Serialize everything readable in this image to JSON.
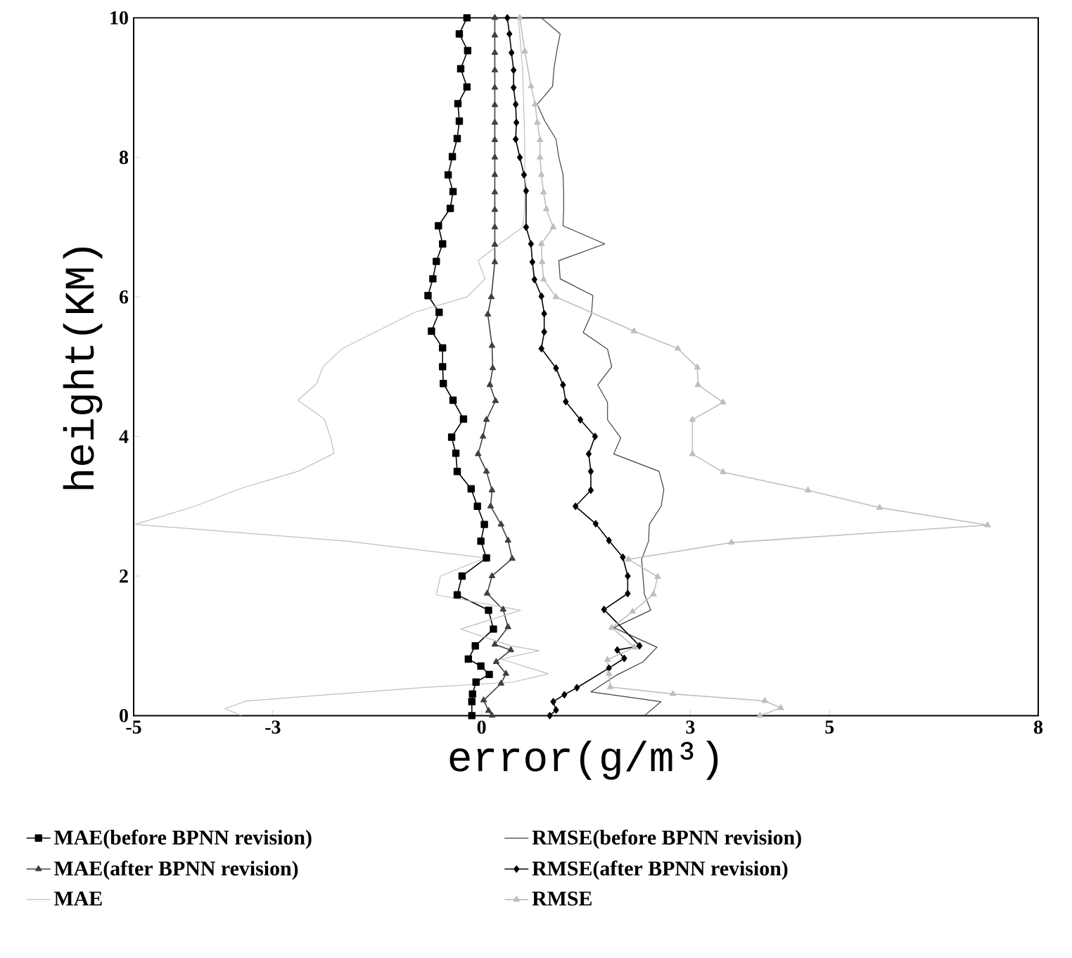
{
  "chart_data": {
    "type": "line",
    "xlabel": "error(g/m³)",
    "ylabel": "height(KM)",
    "xlim": [
      -5,
      8
    ],
    "ylim": [
      0,
      10
    ],
    "xticks": [
      -5,
      -3,
      0,
      3,
      5,
      8
    ],
    "yticks": [
      0,
      2,
      4,
      6,
      8,
      10
    ],
    "grid": false,
    "legend": "bottom",
    "series": [
      {
        "name": "MAE(before BPNN revision)",
        "color": "#000000",
        "marker": "square",
        "x": [
          -0.21,
          -0.32,
          -0.2,
          -0.3,
          -0.21,
          -0.34,
          -0.32,
          -0.35,
          -0.42,
          -0.48,
          -0.41,
          -0.45,
          -0.62,
          -0.56,
          -0.65,
          -0.7,
          -0.77,
          -0.61,
          -0.72,
          -0.56,
          -0.56,
          -0.55,
          -0.41,
          -0.26,
          -0.43,
          -0.37,
          -0.35,
          -0.15,
          -0.06,
          0.04,
          -0.01,
          0.07,
          -0.28,
          -0.35,
          0.1,
          0.17,
          -0.09,
          -0.19,
          -0.01,
          0.11,
          -0.08,
          -0.13,
          -0.14,
          -0.14
        ],
        "values": [
          10,
          9.77,
          9.53,
          9.27,
          9.01,
          8.77,
          8.52,
          8.27,
          8.01,
          7.75,
          7.51,
          7.27,
          7.02,
          6.76,
          6.51,
          6.26,
          6.02,
          5.78,
          5.51,
          5.27,
          5.0,
          4.76,
          4.52,
          4.25,
          3.99,
          3.76,
          3.5,
          3.25,
          3.0,
          2.74,
          2.5,
          2.26,
          2.0,
          1.73,
          1.51,
          1.24,
          1.0,
          0.81,
          0.71,
          0.59,
          0.48,
          0.31,
          0.2,
          0.0
        ]
      },
      {
        "name": "RMSE(before BPNN revision)",
        "color": "#404040",
        "marker": "none",
        "x": [
          0.86,
          1.13,
          1.08,
          1.04,
          1.02,
          0.8,
          0.91,
          1.07,
          1.11,
          1.17,
          1.18,
          1.18,
          1.17,
          1.77,
          1.11,
          1.13,
          1.6,
          1.58,
          1.46,
          1.81,
          1.87,
          1.67,
          1.81,
          1.81,
          2.0,
          1.9,
          2.55,
          2.62,
          2.58,
          2.41,
          2.4,
          2.3,
          2.32,
          2.34,
          2.43,
          1.9,
          2.52,
          2.32,
          1.94,
          1.57,
          2.58,
          2.34
        ],
        "values": [
          10,
          9.77,
          9.52,
          9.27,
          9.02,
          8.76,
          8.52,
          8.26,
          8.0,
          7.76,
          7.5,
          7.26,
          7.02,
          6.76,
          6.52,
          6.26,
          6.02,
          5.76,
          5.49,
          5.25,
          5.0,
          4.74,
          4.49,
          4.24,
          3.98,
          3.75,
          3.5,
          3.24,
          3.0,
          2.74,
          2.5,
          2.24,
          1.99,
          1.74,
          1.51,
          1.26,
          0.98,
          0.77,
          0.58,
          0.34,
          0.2,
          0.0
        ]
      },
      {
        "name": "MAE(after BPNN revision)",
        "color": "#404040",
        "marker": "triangle",
        "x": [
          0.19,
          0.19,
          0.19,
          0.19,
          0.19,
          0.19,
          0.19,
          0.19,
          0.19,
          0.19,
          0.19,
          0.19,
          0.19,
          0.19,
          0.19,
          0.14,
          0.09,
          0.15,
          0.16,
          0.12,
          0.2,
          0.07,
          0.02,
          -0.05,
          0.07,
          0.15,
          0.13,
          0.28,
          0.38,
          0.44,
          0.15,
          0.08,
          0.31,
          0.38,
          0.19,
          0.42,
          0.21,
          0.35,
          0.28,
          0.03,
          0.1,
          0.15
        ],
        "values": [
          10,
          9.75,
          9.5,
          9.25,
          9.0,
          8.75,
          8.5,
          8.25,
          8.0,
          7.75,
          7.5,
          7.25,
          7.0,
          6.75,
          6.5,
          6.0,
          5.75,
          5.3,
          4.98,
          4.74,
          4.51,
          4.24,
          4.0,
          3.75,
          3.5,
          3.23,
          3.0,
          2.74,
          2.51,
          2.25,
          2.0,
          1.75,
          1.52,
          1.27,
          1.02,
          0.94,
          0.77,
          0.6,
          0.46,
          0.22,
          0.07,
          0.0
        ]
      },
      {
        "name": "RMSE(after BPNN revision)",
        "color": "#000000",
        "marker": "diamond",
        "x": [
          0.37,
          0.4,
          0.43,
          0.46,
          0.46,
          0.49,
          0.5,
          0.49,
          0.55,
          0.61,
          0.64,
          0.64,
          0.71,
          0.73,
          0.76,
          0.86,
          0.9,
          0.9,
          0.86,
          1.07,
          1.17,
          1.21,
          1.42,
          1.63,
          1.54,
          1.57,
          1.57,
          1.35,
          1.64,
          1.83,
          2.03,
          2.1,
          2.1,
          1.76,
          2.27,
          1.95,
          2.05,
          1.83,
          1.37,
          1.19,
          1.03,
          1.07,
          0.98
        ],
        "values": [
          10,
          9.77,
          9.5,
          9.25,
          9.0,
          8.76,
          8.5,
          8.26,
          8.0,
          7.75,
          7.52,
          7.0,
          6.76,
          6.5,
          6.25,
          6.01,
          5.76,
          5.5,
          5.26,
          4.98,
          4.74,
          4.5,
          4.24,
          4.0,
          3.75,
          3.5,
          3.23,
          3.0,
          2.75,
          2.51,
          2.27,
          2.0,
          1.75,
          1.52,
          1.0,
          0.94,
          0.82,
          0.68,
          0.4,
          0.3,
          0.2,
          0.08,
          0.0
        ]
      },
      {
        "name": "MAE",
        "color": "#bfbfbf",
        "marker": "none",
        "x": [
          0.53,
          0.59,
          0.62,
          0.62,
          0.59,
          0.26,
          -0.05,
          0.05,
          -0.21,
          -0.96,
          -1.5,
          -2.0,
          -2.28,
          -2.37,
          -2.64,
          -2.26,
          -2.17,
          -2.12,
          -2.64,
          -3.48,
          -4.12,
          -4.98,
          -1.93,
          0.05,
          -0.59,
          -0.65,
          0.56,
          -0.3,
          0.42,
          0.83,
          0.28,
          0.96,
          0.45,
          -0.86,
          -2.07,
          -3.38,
          -3.69,
          -3.45
        ],
        "values": [
          10,
          9.25,
          8.25,
          7.25,
          7.0,
          6.76,
          6.52,
          6.26,
          6.0,
          5.78,
          5.51,
          5.26,
          5.0,
          4.76,
          4.52,
          4.25,
          3.99,
          3.76,
          3.5,
          3.25,
          3.0,
          2.74,
          2.5,
          2.26,
          2.0,
          1.73,
          1.51,
          1.24,
          1.0,
          0.93,
          0.81,
          0.6,
          0.48,
          0.4,
          0.31,
          0.21,
          0.1,
          0.0
        ]
      },
      {
        "name": "RMSE",
        "color": "#bfbfbf",
        "marker": "triangle",
        "x": [
          0.55,
          0.62,
          0.71,
          0.77,
          0.8,
          0.84,
          0.84,
          0.86,
          0.89,
          0.93,
          1.03,
          0.86,
          0.87,
          0.89,
          1.07,
          2.19,
          2.82,
          3.1,
          3.11,
          3.47,
          3.03,
          3.03,
          3.47,
          4.69,
          5.72,
          7.27,
          3.59,
          2.11,
          2.53,
          2.47,
          2.17,
          1.87,
          2.2,
          1.81,
          1.83,
          1.85,
          2.75,
          4.07,
          4.3,
          4.0
        ],
        "values": [
          10,
          9.52,
          9.02,
          8.76,
          8.5,
          8.25,
          8.0,
          7.75,
          7.5,
          7.26,
          7.0,
          6.76,
          6.5,
          6.25,
          6.0,
          5.51,
          5.26,
          4.99,
          4.74,
          4.49,
          4.24,
          3.75,
          3.49,
          3.23,
          2.98,
          2.73,
          2.48,
          2.24,
          1.99,
          1.74,
          1.49,
          1.26,
          0.98,
          0.8,
          0.6,
          0.41,
          0.31,
          0.21,
          0.11,
          0.0
        ]
      }
    ]
  }
}
